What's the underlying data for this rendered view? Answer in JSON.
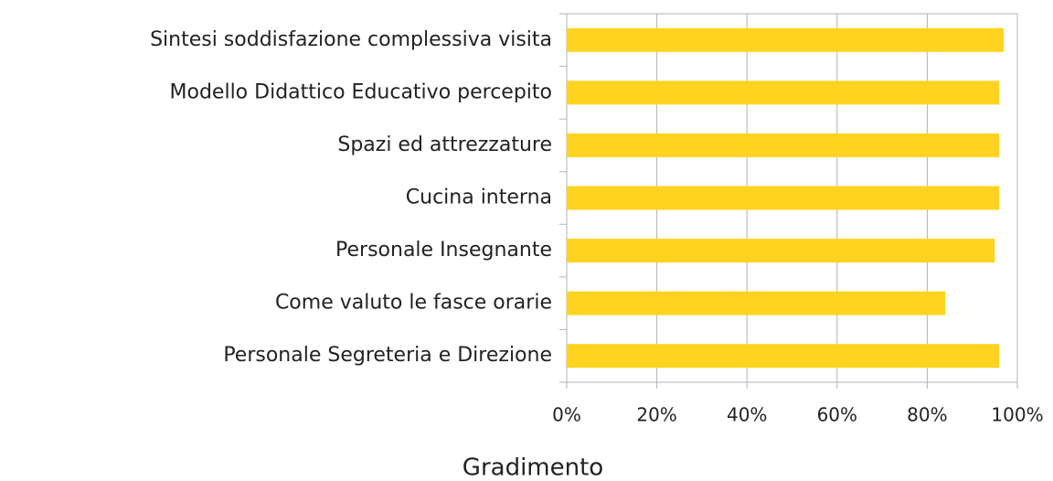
{
  "chart_data": {
    "type": "bar",
    "orientation": "horizontal",
    "x_label": "Gradimento",
    "categories": [
      "Sintesi soddisfazione complessiva visita",
      "Modello Didattico Educativo percepito",
      "Spazi ed attrezzature",
      "Cucina interna",
      "Personale Insegnante",
      "Come valuto le fasce orarie",
      "Personale Segreteria e Direzione"
    ],
    "values": [
      97,
      96,
      96,
      96,
      95,
      84,
      96
    ],
    "color": "#ffd320",
    "xlim": [
      0,
      100
    ],
    "xticks": [
      {
        "value": 0,
        "label": "0%"
      },
      {
        "value": 20,
        "label": "20%"
      },
      {
        "value": 40,
        "label": "40%"
      },
      {
        "value": 60,
        "label": "60%"
      },
      {
        "value": 80,
        "label": "80%"
      },
      {
        "value": 100,
        "label": "100%"
      }
    ],
    "grid": true
  }
}
